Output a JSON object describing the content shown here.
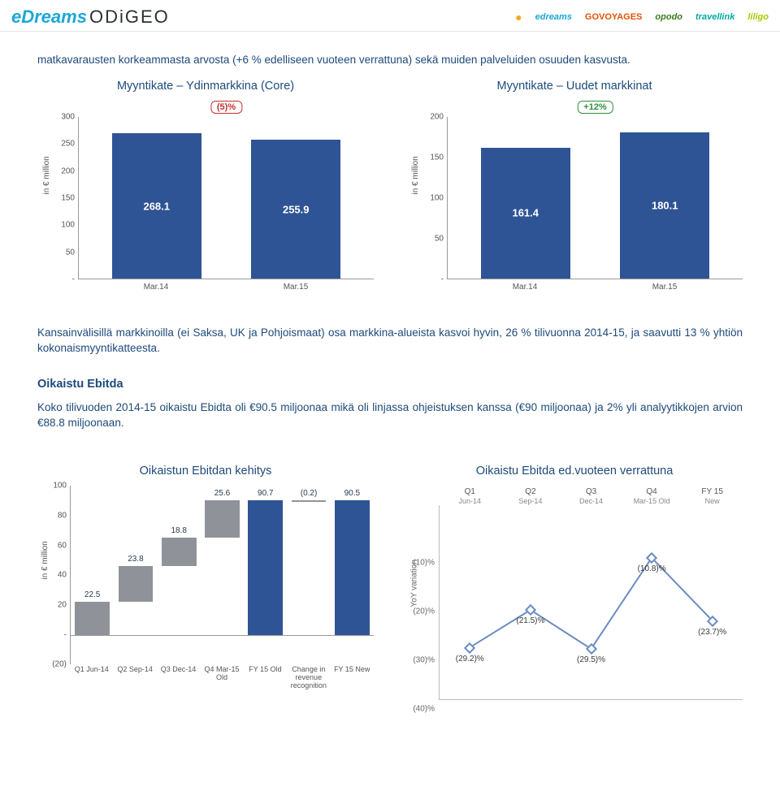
{
  "header": {
    "logo_e": "eDreams",
    "logo_odi": "ODiGEO",
    "brands": {
      "edreams": "edreams",
      "govoyages": "GOVOYAGES",
      "opodo": "opodo",
      "travellink": "travellink",
      "liligo": "liligo"
    }
  },
  "colors": {
    "primary_text": "#1e4a7b",
    "bar_blue": "#2f5496",
    "annot_red": "#c52e2e",
    "annot_green": "#2e8f3a",
    "wf_gray": "#8f9399",
    "cmp_line": "#6a8cc2",
    "background": "#ffffff",
    "gridline": "#d7d7d7",
    "tick_text": "#595959"
  },
  "lead_para": "matkavarausten korkeammasta arvosta (+6 % edelliseen vuoteen verrattuna) sekä muiden palveluiden osuuden kasvusta.",
  "chart1": {
    "title": "Myyntikate – Ydinmarkkina (Core)",
    "type": "bar",
    "categories": [
      "Mar.14",
      "Mar.15"
    ],
    "values": [
      268.1,
      255.9
    ],
    "annot": "(5)%",
    "annot_color": "#c52e2e",
    "ylabel": "in € million",
    "ylim": [
      0,
      300
    ],
    "ytick_step": 50,
    "bar_color": "#2f5496"
  },
  "chart2": {
    "title": "Myyntikate – Uudet markkinat",
    "type": "bar",
    "categories": [
      "Mar.14",
      "Mar.15"
    ],
    "values": [
      161.4,
      180.1
    ],
    "annot": "+12%",
    "annot_color": "#2e8f3a",
    "ylabel": "in € million",
    "ylim": [
      0,
      200
    ],
    "ytick_step": 50,
    "bar_color": "#2f5496"
  },
  "para2": "Kansainvälisillä markkinoilla (ei Saksa, UK ja Pohjoismaat) osa markkina-alueista kasvoi hyvin, 26 % tilivuonna 2014-15, ja saavutti 13 % yhtiön kokonaismyyntikatteesta.",
  "heading_oe": "Oikaistu Ebitda",
  "para3": "Koko tilivuoden 2014-15 oikaistu Ebidta oli €90.5 miljoonaa mikä oli linjassa ohjeistuksen kanssa (€90 miljoonaa) ja  2% yli analyytikkojen arvion €88.8 miljoonaan.",
  "chart3": {
    "title": "Oikaistun Ebitdan kehitys",
    "type": "waterfall",
    "categories": [
      "Q1 Jun-14",
      "Q2 Sep-14",
      "Q3 Dec-14",
      "Q4 Mar-15 Old",
      "FY 15 Old",
      "Change in revenue recognition",
      "FY 15 New"
    ],
    "values": [
      22.5,
      23.8,
      18.8,
      25.6,
      90.7,
      -0.2,
      90.5
    ],
    "display_labels": [
      "22.5",
      "23.8",
      "18.8",
      "25.6",
      "90.7",
      "(0.2)",
      "90.5"
    ],
    "ylabel": "in € million",
    "ylim": [
      -20,
      100
    ],
    "ytick_step": 20,
    "bar_color_step": "#8f9399",
    "bar_color_total": "#2f5496",
    "is_total": [
      false,
      false,
      false,
      false,
      true,
      false,
      true
    ]
  },
  "chart4": {
    "title": "Oikaistu Ebitda ed.vuoteen verrattuna",
    "type": "line",
    "categories": [
      "Q1",
      "Q2",
      "Q3",
      "Q4",
      "FY 15"
    ],
    "sublabels": [
      "Jun-14",
      "Sep-14",
      "Dec-14",
      "Mar-15 Old",
      "New"
    ],
    "values": [
      -29.2,
      -21.5,
      -29.5,
      -10.8,
      -23.7
    ],
    "display_labels": [
      "(29.2)%",
      "(21.5)%",
      "(29.5)%",
      "(10.8)%",
      "(23.7)%"
    ],
    "ylabel": "YoY variation",
    "yticks": [
      -10,
      -20,
      -30,
      -40
    ],
    "ytick_labels": [
      "(10)%",
      "(20)%",
      "(30)%",
      "(40)%"
    ],
    "line_color": "#6a8cc2",
    "marker_style": "diamond"
  }
}
